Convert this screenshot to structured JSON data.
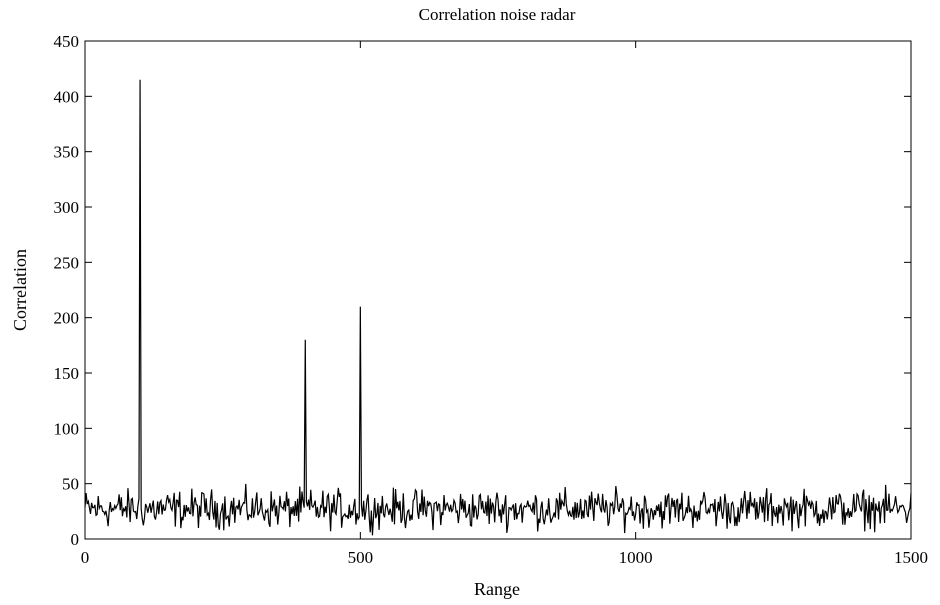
{
  "chart_data": {
    "type": "line",
    "title": "Correlation noise radar",
    "xlabel": "Range",
    "ylabel": "Correlation",
    "xlim": [
      0,
      1500
    ],
    "ylim": [
      0,
      450
    ],
    "xticks": [
      0,
      500,
      1000,
      1500
    ],
    "yticks": [
      0,
      50,
      100,
      150,
      200,
      250,
      300,
      350,
      400,
      450
    ],
    "grid": false,
    "series": [
      {
        "color": "#000000",
        "peaks": [
          {
            "x": 100,
            "y": 415
          },
          {
            "x": 400,
            "y": 180
          },
          {
            "x": 500,
            "y": 210
          }
        ],
        "noise_floor": {
          "range": [
            0,
            1500
          ],
          "typical_min": 2,
          "typical_max": 50,
          "approx_mean": 22
        }
      }
    ]
  }
}
